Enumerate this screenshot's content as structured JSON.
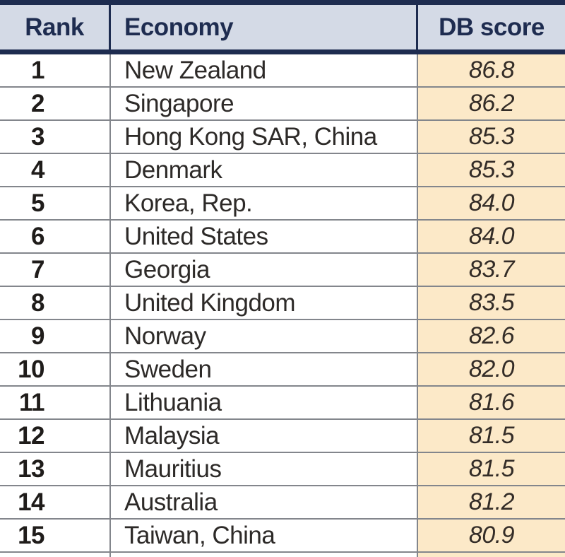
{
  "table": {
    "columns": [
      {
        "label": "Rank"
      },
      {
        "label": "Economy"
      },
      {
        "label": "DB score"
      }
    ],
    "rows": [
      {
        "rank": "1",
        "economy": "New Zealand",
        "score": "86.8"
      },
      {
        "rank": "2",
        "economy": "Singapore",
        "score": "86.2"
      },
      {
        "rank": "3",
        "economy": "Hong Kong SAR, China",
        "score": "85.3"
      },
      {
        "rank": "4",
        "economy": "Denmark",
        "score": "85.3"
      },
      {
        "rank": "5",
        "economy": "Korea, Rep.",
        "score": "84.0"
      },
      {
        "rank": "6",
        "economy": "United States",
        "score": "84.0"
      },
      {
        "rank": "7",
        "economy": "Georgia",
        "score": "83.7"
      },
      {
        "rank": "8",
        "economy": "United Kingdom",
        "score": "83.5"
      },
      {
        "rank": "9",
        "economy": "Norway",
        "score": "82.6"
      },
      {
        "rank": "10",
        "economy": "Sweden",
        "score": "82.0"
      },
      {
        "rank": "11",
        "economy": "Lithuania",
        "score": "81.6"
      },
      {
        "rank": "12",
        "economy": "Malaysia",
        "score": "81.5"
      },
      {
        "rank": "13",
        "economy": "Mauritius",
        "score": "81.5"
      },
      {
        "rank": "14",
        "economy": "Australia",
        "score": "81.2"
      },
      {
        "rank": "15",
        "economy": "Taiwan, China",
        "score": "80.9"
      }
    ]
  },
  "colors": {
    "navy": "#1e2c50",
    "header_bg": "#d4dae6",
    "score_column_bg": "#fce9c8",
    "grid_line": "#83868c",
    "body_text": "#2d2a28"
  }
}
